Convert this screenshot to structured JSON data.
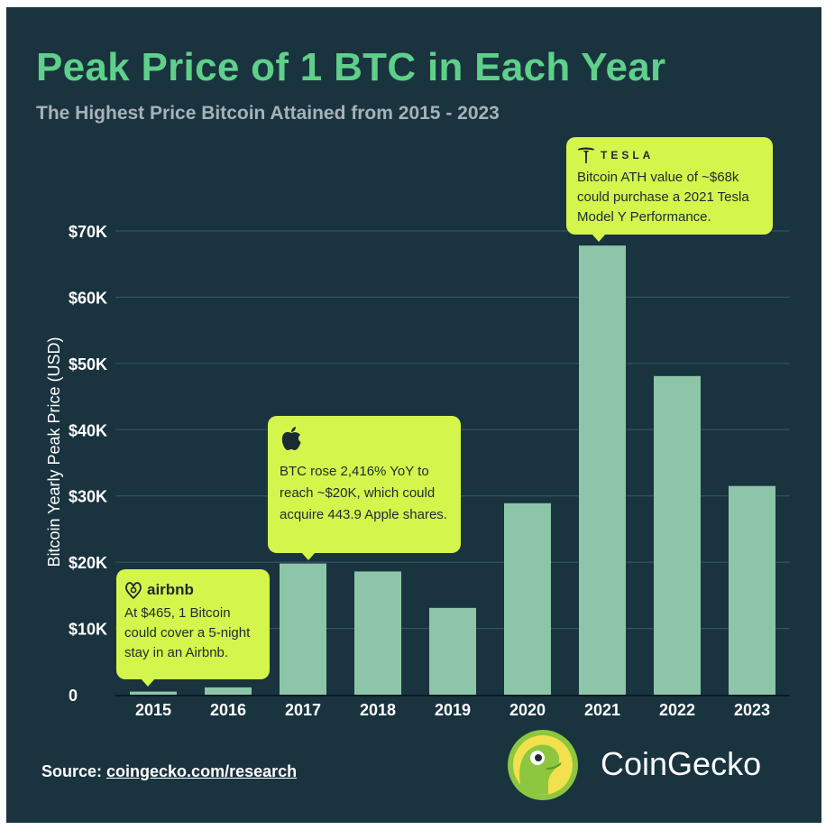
{
  "header": {
    "title": "Peak Price of 1 BTC in Each Year",
    "subtitle": "The Highest Price Bitcoin Attained from 2015 - 2023"
  },
  "chart_data": {
    "type": "bar",
    "categories": [
      "2015",
      "2016",
      "2017",
      "2018",
      "2019",
      "2020",
      "2021",
      "2022",
      "2023"
    ],
    "values": [
      465,
      1100,
      19800,
      18600,
      13100,
      28900,
      67800,
      48100,
      31500
    ],
    "ylabel": "Bitcoin Yearly Peak Price (USD)",
    "xlabel": "",
    "ylim": [
      0,
      70000
    ],
    "yticks": [
      0,
      10000,
      20000,
      30000,
      40000,
      50000,
      60000,
      70000
    ],
    "ytick_labels": [
      "0",
      "$10K",
      "$20K",
      "$30K",
      "$40K",
      "$50K",
      "$60K",
      "$70K"
    ],
    "grid": true,
    "bar_color": "#8dc5a8",
    "annotations": [
      {
        "brand": "airbnb",
        "category": "2015",
        "text": "At $465, 1 Bitcoin could cover a 5-night stay in an Airbnb."
      },
      {
        "brand": "apple",
        "category": "2017",
        "text": "BTC rose 2,416% YoY to reach ~$20K, which could acquire 443.9 Apple shares."
      },
      {
        "brand": "TESLA",
        "category": "2021",
        "text": "Bitcoin ATH value of ~$68k could purchase a 2021 Tesla Model Y Performance."
      }
    ]
  },
  "callouts": {
    "airbnb": {
      "brand_label": "airbnb",
      "icon": "airbnb-logo-icon",
      "text": "At $465, 1 Bitcoin could cover a 5-night stay in an Airbnb."
    },
    "apple": {
      "icon": "apple-logo-icon",
      "text": "BTC rose 2,416% YoY to reach ~$20K, which could acquire 443.9 Apple shares."
    },
    "tesla": {
      "brand_label": "TESLA",
      "icon": "tesla-logo-icon",
      "text": "Bitcoin ATH value of ~$68k could purchase a 2021 Tesla Model Y Performance."
    }
  },
  "footer": {
    "source_prefix": "Source: ",
    "source_link": "coingecko.com/research",
    "brand": "CoinGecko",
    "logo_icon": "coingecko-gecko-icon"
  },
  "colors": {
    "background": "#19333f",
    "title": "#5fd08a",
    "bar": "#8dc5a8",
    "callout": "#d4f54c"
  }
}
